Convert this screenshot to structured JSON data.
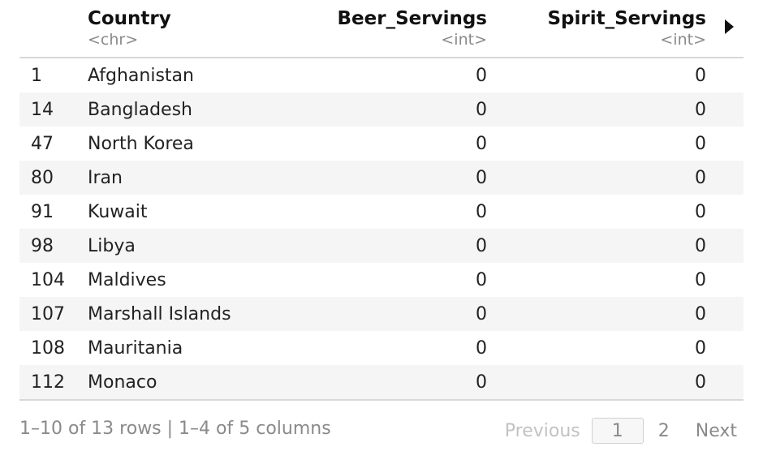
{
  "table": {
    "columns": [
      {
        "name": "Country",
        "type": "<chr>"
      },
      {
        "name": "Beer_Servings",
        "type": "<int>"
      },
      {
        "name": "Spirit_Servings",
        "type": "<int>"
      }
    ],
    "rows": [
      {
        "index": "1",
        "country": "Afghanistan",
        "beer": "0",
        "spirit": "0"
      },
      {
        "index": "14",
        "country": "Bangladesh",
        "beer": "0",
        "spirit": "0"
      },
      {
        "index": "47",
        "country": "North Korea",
        "beer": "0",
        "spirit": "0"
      },
      {
        "index": "80",
        "country": "Iran",
        "beer": "0",
        "spirit": "0"
      },
      {
        "index": "91",
        "country": "Kuwait",
        "beer": "0",
        "spirit": "0"
      },
      {
        "index": "98",
        "country": "Libya",
        "beer": "0",
        "spirit": "0"
      },
      {
        "index": "104",
        "country": "Maldives",
        "beer": "0",
        "spirit": "0"
      },
      {
        "index": "107",
        "country": "Marshall Islands",
        "beer": "0",
        "spirit": "0"
      },
      {
        "index": "108",
        "country": "Mauritania",
        "beer": "0",
        "spirit": "0"
      },
      {
        "index": "112",
        "country": "Monaco",
        "beer": "0",
        "spirit": "0"
      }
    ],
    "next_columns_icon": "triangle-right-icon"
  },
  "footer": {
    "info": "1–10 of 13 rows | 1–4 of 5 columns",
    "pager": {
      "previous": "Previous",
      "pages": [
        "1",
        "2"
      ],
      "current": "1",
      "next": "Next"
    }
  }
}
